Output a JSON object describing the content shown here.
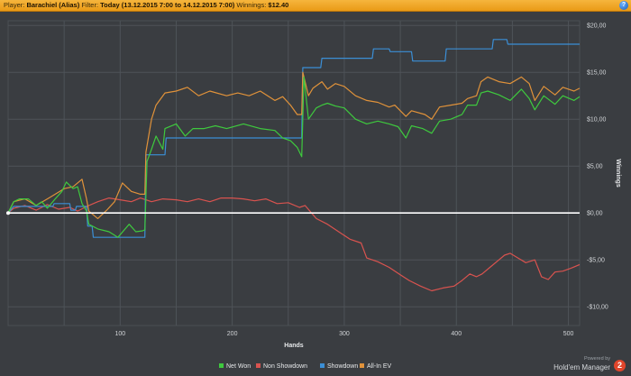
{
  "header": {
    "player_label": "Player:",
    "player_name": "Barachiel (Alias)",
    "filter_label": "Filter:",
    "filter_value": "Today (13.12.2015 7:00 to 14.12.2015 7:00)",
    "winnings_label": "Winnings:",
    "winnings_value": "$12.40",
    "help_icon": "?"
  },
  "footer": {
    "powered_by": "Powered by",
    "brand": "Hold'em Manager",
    "brand_logo": "2"
  },
  "colors": {
    "net_won": "#3ec93e",
    "non_showdown": "#d9534f",
    "showdown": "#3b8fd6",
    "all_in_ev": "#e0923a",
    "background": "#3a3d41",
    "grid": "#4e5358"
  },
  "chart_data": {
    "type": "line",
    "xlabel": "Hands",
    "ylabel": "Winnings",
    "xlim": [
      0,
      510
    ],
    "ylim": [
      -12,
      20.5
    ],
    "x_ticks": [
      100,
      200,
      300,
      400,
      500
    ],
    "y_ticks": [
      {
        "value": 20,
        "label": "$20,00"
      },
      {
        "value": 15,
        "label": "$15,00"
      },
      {
        "value": 10,
        "label": "$10,00"
      },
      {
        "value": 5,
        "label": "$5,00"
      },
      {
        "value": 0,
        "label": "$0,00"
      },
      {
        "value": -5,
        "label": "-$5,00"
      },
      {
        "value": -10,
        "label": "-$10,00"
      }
    ],
    "grid": true,
    "legend_position": "bottom",
    "series": [
      {
        "name": "Net Won",
        "color": "#3ec93e",
        "points": [
          [
            0,
            0
          ],
          [
            5,
            1.2
          ],
          [
            10,
            1.5
          ],
          [
            18,
            1.5
          ],
          [
            25,
            0.8
          ],
          [
            30,
            1.2
          ],
          [
            35,
            0.5
          ],
          [
            42,
            1.5
          ],
          [
            48,
            2.3
          ],
          [
            52,
            3.3
          ],
          [
            58,
            2.6
          ],
          [
            62,
            2.8
          ],
          [
            66,
            1.0
          ],
          [
            70,
            0.2
          ],
          [
            72,
            -1.2
          ],
          [
            80,
            -1.7
          ],
          [
            90,
            -2.0
          ],
          [
            98,
            -2.6
          ],
          [
            108,
            -1.2
          ],
          [
            114,
            -2.0
          ],
          [
            120,
            -1.9
          ],
          [
            122,
            -1.8
          ],
          [
            124,
            5.5
          ],
          [
            128,
            6.8
          ],
          [
            132,
            8.2
          ],
          [
            138,
            6.8
          ],
          [
            140,
            9.0
          ],
          [
            150,
            9.5
          ],
          [
            158,
            8.2
          ],
          [
            165,
            9.0
          ],
          [
            175,
            9.0
          ],
          [
            185,
            9.3
          ],
          [
            195,
            9.0
          ],
          [
            210,
            9.5
          ],
          [
            225,
            9.0
          ],
          [
            238,
            8.8
          ],
          [
            245,
            8.0
          ],
          [
            252,
            7.7
          ],
          [
            258,
            7.0
          ],
          [
            262,
            6.0
          ],
          [
            264,
            14.5
          ],
          [
            268,
            10.0
          ],
          [
            275,
            11.2
          ],
          [
            280,
            11.5
          ],
          [
            285,
            11.7
          ],
          [
            292,
            11.4
          ],
          [
            300,
            11.2
          ],
          [
            310,
            10.0
          ],
          [
            320,
            9.5
          ],
          [
            330,
            9.8
          ],
          [
            340,
            9.5
          ],
          [
            348,
            9.2
          ],
          [
            355,
            8.0
          ],
          [
            360,
            9.3
          ],
          [
            370,
            9.0
          ],
          [
            378,
            8.5
          ],
          [
            385,
            9.8
          ],
          [
            395,
            10.0
          ],
          [
            405,
            10.5
          ],
          [
            410,
            11.5
          ],
          [
            418,
            11.5
          ],
          [
            422,
            12.8
          ],
          [
            428,
            13.0
          ],
          [
            438,
            12.6
          ],
          [
            448,
            12.0
          ],
          [
            458,
            13.2
          ],
          [
            465,
            12.2
          ],
          [
            470,
            11.0
          ],
          [
            478,
            12.5
          ],
          [
            488,
            11.6
          ],
          [
            495,
            12.5
          ],
          [
            505,
            12.0
          ],
          [
            510,
            12.4
          ]
        ]
      },
      {
        "name": "Non Showdown",
        "color": "#d9534f",
        "points": [
          [
            0,
            0
          ],
          [
            5,
            0.5
          ],
          [
            15,
            0.8
          ],
          [
            25,
            0.3
          ],
          [
            35,
            0.9
          ],
          [
            45,
            0.4
          ],
          [
            55,
            0.6
          ],
          [
            62,
            0.2
          ],
          [
            72,
            0.8
          ],
          [
            80,
            1.2
          ],
          [
            90,
            1.6
          ],
          [
            100,
            1.4
          ],
          [
            110,
            1.2
          ],
          [
            118,
            1.6
          ],
          [
            128,
            1.2
          ],
          [
            138,
            1.5
          ],
          [
            150,
            1.4
          ],
          [
            160,
            1.2
          ],
          [
            170,
            1.5
          ],
          [
            180,
            1.2
          ],
          [
            190,
            1.6
          ],
          [
            200,
            1.6
          ],
          [
            210,
            1.5
          ],
          [
            220,
            1.3
          ],
          [
            230,
            1.5
          ],
          [
            240,
            1.0
          ],
          [
            250,
            1.1
          ],
          [
            260,
            0.6
          ],
          [
            265,
            0.8
          ],
          [
            275,
            -0.6
          ],
          [
            285,
            -1.2
          ],
          [
            295,
            -2.0
          ],
          [
            305,
            -2.8
          ],
          [
            315,
            -3.2
          ],
          [
            320,
            -4.8
          ],
          [
            330,
            -5.2
          ],
          [
            340,
            -5.8
          ],
          [
            350,
            -6.6
          ],
          [
            358,
            -7.2
          ],
          [
            368,
            -7.8
          ],
          [
            378,
            -8.3
          ],
          [
            388,
            -8.0
          ],
          [
            398,
            -7.8
          ],
          [
            405,
            -7.2
          ],
          [
            412,
            -6.5
          ],
          [
            418,
            -6.8
          ],
          [
            423,
            -6.5
          ],
          [
            430,
            -5.8
          ],
          [
            438,
            -5.0
          ],
          [
            443,
            -4.5
          ],
          [
            448,
            -4.3
          ],
          [
            455,
            -4.8
          ],
          [
            462,
            -5.3
          ],
          [
            470,
            -5.0
          ],
          [
            476,
            -6.8
          ],
          [
            482,
            -7.1
          ],
          [
            488,
            -6.3
          ],
          [
            495,
            -6.2
          ],
          [
            502,
            -5.9
          ],
          [
            510,
            -5.5
          ]
        ]
      },
      {
        "name": "Showdown",
        "color": "#3b8fd6",
        "points": [
          [
            0,
            0
          ],
          [
            5,
            0.7
          ],
          [
            40,
            0.7
          ],
          [
            41,
            1.0
          ],
          [
            55,
            1.0
          ],
          [
            56,
            0.3
          ],
          [
            60,
            0.3
          ],
          [
            61,
            0.7
          ],
          [
            70,
            0.7
          ],
          [
            71,
            -1.4
          ],
          [
            75,
            -1.4
          ],
          [
            76,
            -2.6
          ],
          [
            122,
            -2.6
          ],
          [
            123,
            6.2
          ],
          [
            140,
            6.2
          ],
          [
            141,
            8.0
          ],
          [
            262,
            8.0
          ],
          [
            263,
            15.5
          ],
          [
            279,
            15.5
          ],
          [
            280,
            16.5
          ],
          [
            325,
            16.5
          ],
          [
            326,
            17.5
          ],
          [
            340,
            17.5
          ],
          [
            341,
            17.2
          ],
          [
            360,
            17.2
          ],
          [
            361,
            16.2
          ],
          [
            390,
            16.2
          ],
          [
            391,
            17.5
          ],
          [
            432,
            17.5
          ],
          [
            433,
            18.5
          ],
          [
            445,
            18.5
          ],
          [
            446,
            18.0
          ],
          [
            510,
            18.0
          ]
        ]
      },
      {
        "name": "All-In EV",
        "color": "#e0923a",
        "points": [
          [
            0,
            0
          ],
          [
            5,
            1.2
          ],
          [
            15,
            1.5
          ],
          [
            25,
            0.8
          ],
          [
            35,
            1.5
          ],
          [
            42,
            2.0
          ],
          [
            50,
            2.6
          ],
          [
            58,
            2.8
          ],
          [
            66,
            3.6
          ],
          [
            70,
            1.5
          ],
          [
            72,
            0.2
          ],
          [
            80,
            -0.6
          ],
          [
            88,
            0.3
          ],
          [
            95,
            1.2
          ],
          [
            102,
            3.2
          ],
          [
            110,
            2.3
          ],
          [
            118,
            2.0
          ],
          [
            122,
            2.0
          ],
          [
            123,
            6.5
          ],
          [
            128,
            10.0
          ],
          [
            132,
            11.5
          ],
          [
            140,
            12.8
          ],
          [
            150,
            13.0
          ],
          [
            160,
            13.4
          ],
          [
            170,
            12.5
          ],
          [
            180,
            13.0
          ],
          [
            195,
            12.5
          ],
          [
            205,
            12.8
          ],
          [
            215,
            12.5
          ],
          [
            225,
            13.0
          ],
          [
            238,
            12.0
          ],
          [
            245,
            12.4
          ],
          [
            252,
            11.5
          ],
          [
            258,
            10.5
          ],
          [
            262,
            10.5
          ],
          [
            263,
            15.0
          ],
          [
            268,
            12.5
          ],
          [
            272,
            13.3
          ],
          [
            280,
            14.0
          ],
          [
            285,
            13.2
          ],
          [
            292,
            13.8
          ],
          [
            300,
            13.5
          ],
          [
            310,
            12.5
          ],
          [
            320,
            12.0
          ],
          [
            330,
            11.8
          ],
          [
            340,
            11.3
          ],
          [
            345,
            11.5
          ],
          [
            355,
            10.3
          ],
          [
            360,
            10.9
          ],
          [
            372,
            10.5
          ],
          [
            378,
            10.0
          ],
          [
            385,
            11.3
          ],
          [
            395,
            11.5
          ],
          [
            405,
            11.7
          ],
          [
            410,
            12.2
          ],
          [
            418,
            12.5
          ],
          [
            422,
            14.0
          ],
          [
            428,
            14.5
          ],
          [
            438,
            14.0
          ],
          [
            448,
            13.8
          ],
          [
            458,
            14.5
          ],
          [
            465,
            13.8
          ],
          [
            470,
            12.0
          ],
          [
            478,
            13.5
          ],
          [
            488,
            12.6
          ],
          [
            495,
            13.4
          ],
          [
            505,
            13.0
          ],
          [
            510,
            13.3
          ]
        ]
      }
    ]
  }
}
